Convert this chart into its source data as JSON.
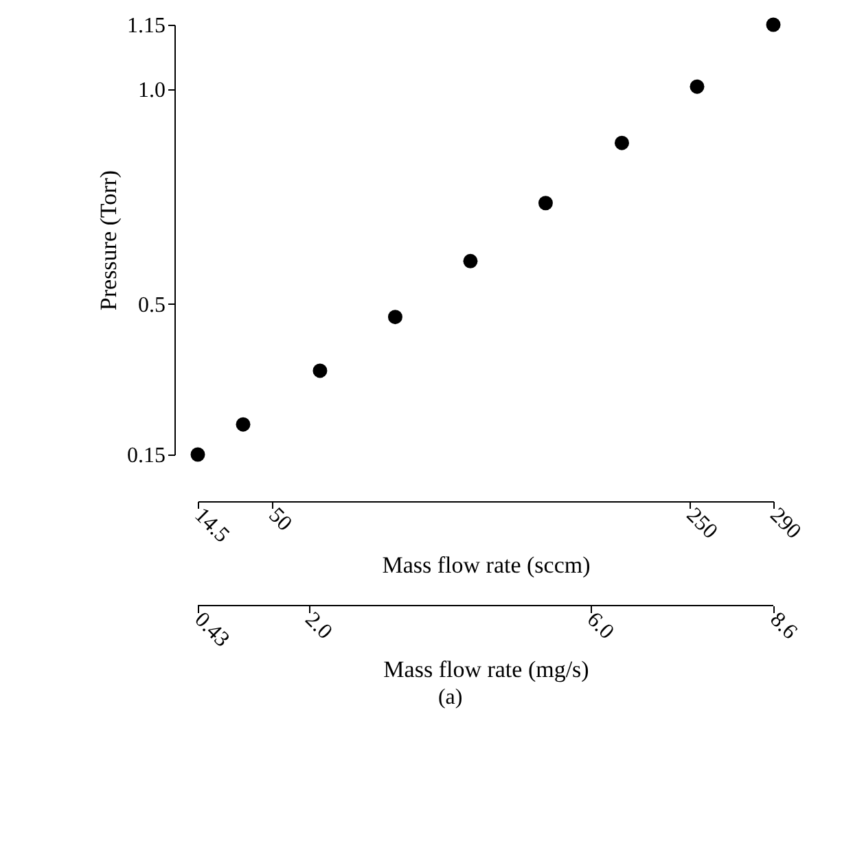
{
  "chart_data": {
    "type": "scatter",
    "xlabel": "Mass flow rate (sccm)",
    "ylabel": "Pressure (Torr)",
    "x2label": "Mass flow rate (mg/s)",
    "x": [
      14.5,
      36.2,
      73,
      109,
      145,
      181,
      217.5,
      253.5,
      290
    ],
    "series": [
      {
        "color": "#000000",
        "values": [
          0.15,
          0.22,
          0.345,
          0.47,
          0.6,
          0.735,
          0.875,
          1.006,
          1.15
        ]
      }
    ],
    "xlim": [
      14.5,
      290
    ],
    "xticks": [
      14.5,
      50,
      250,
      290
    ],
    "ylim": [
      0.15,
      1.15
    ],
    "yticks": [
      0.15,
      0.5,
      {
        "value": 1.0,
        "label": "1.0"
      },
      1.15
    ],
    "x2lim": [
      0.43,
      8.6
    ],
    "x2ticks": [
      0.43,
      {
        "value": 2.0,
        "label": "2.0"
      },
      {
        "value": 6.0,
        "label": "6.0"
      },
      8.6
    ],
    "marker": "circle",
    "grid": false,
    "annotations": [
      "(a)"
    ]
  }
}
